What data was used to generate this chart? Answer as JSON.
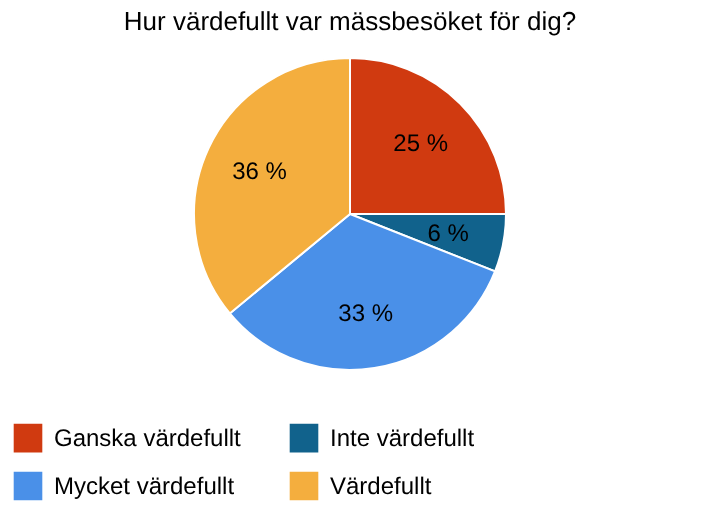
{
  "chart_data": {
    "type": "pie",
    "title": "Hur värdefullt var mässbesöket för dig?",
    "categories": [
      "Ganska värdefullt",
      "Inte värdefullt",
      "Mycket värdefullt",
      "Värdefullt"
    ],
    "values": [
      25,
      6,
      33,
      36
    ],
    "value_labels": [
      "25 %",
      "6 %",
      "33 %",
      "36 %"
    ],
    "colors": [
      "#d03a10",
      "#11628c",
      "#4a90e8",
      "#f4ae3e"
    ],
    "legend": "bottom"
  }
}
